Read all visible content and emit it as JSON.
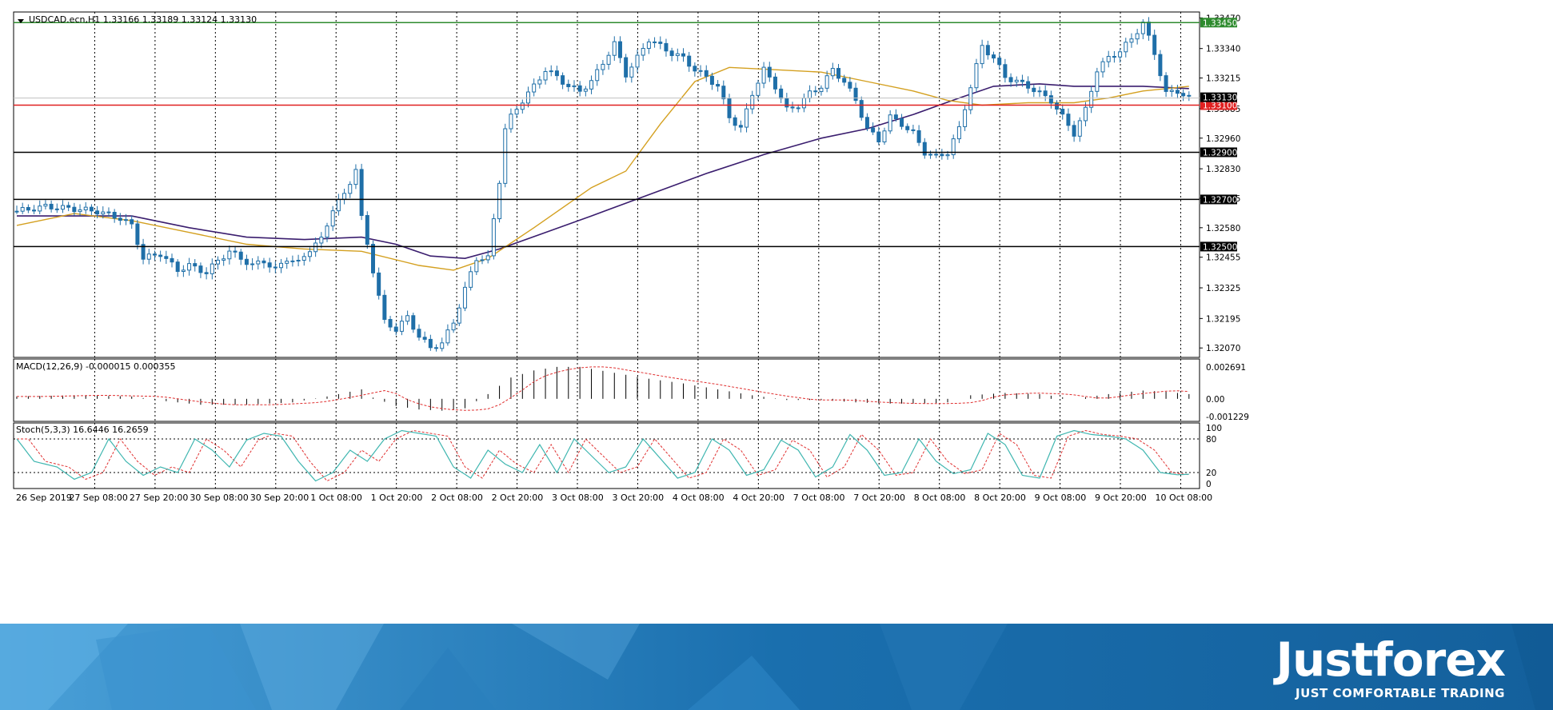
{
  "header": {
    "symbol_info": "USDCAD.ecn,H1  1.33166 1.33189 1.33124 1.33130",
    "macd_label": "MACD(12,26,9) -0.000015 0.000355",
    "stoch_label": "Stoch(5,3,3) 16.6446 16.2659"
  },
  "colors": {
    "candle": "#1f6fa8",
    "ma_fast": "#d4a020",
    "ma_slow": "#3a1d6e",
    "resistance_line": "#2e8b2e",
    "support_red": "#e02020",
    "level_black": "#000000",
    "macd_signal": "#e03030",
    "stoch_main": "#3fb6b0",
    "stoch_signal": "#e03030",
    "footer_bg": "#1a6fae"
  },
  "chart_data": {
    "type": "candlestick",
    "symbol": "USDCAD.ecn",
    "timeframe": "H1",
    "ohlc_current": {
      "open": 1.33166,
      "high": 1.33189,
      "low": 1.33124,
      "close": 1.3313
    },
    "price_axis": {
      "ticks": [
        "1.33470",
        "1.33340",
        "1.33215",
        "1.33085",
        "1.32960",
        "1.32830",
        "1.32705",
        "1.32580",
        "1.32455",
        "1.32325",
        "1.32195",
        "1.32070"
      ],
      "range": [
        1.3203,
        1.33495
      ]
    },
    "current_price_label": "1.33130",
    "horizontal_levels": [
      {
        "label": "1.33450",
        "value": 1.3345,
        "color": "#2e8b2e"
      },
      {
        "label": "1.33100",
        "value": 1.331,
        "color": "#e02020"
      },
      {
        "label": "1.32900",
        "value": 1.329,
        "color": "#000000"
      },
      {
        "label": "1.32700",
        "value": 1.327,
        "color": "#000000"
      },
      {
        "label": "1.32500",
        "value": 1.325,
        "color": "#000000"
      }
    ],
    "time_axis_labels": [
      "26 Sep 2019",
      "27 Sep 08:00",
      "27 Sep 20:00",
      "30 Sep 08:00",
      "30 Sep 20:00",
      "1 Oct 08:00",
      "1 Oct 20:00",
      "2 Oct 08:00",
      "2 Oct 20:00",
      "3 Oct 08:00",
      "3 Oct 20:00",
      "4 Oct 08:00",
      "4 Oct 20:00",
      "7 Oct 08:00",
      "7 Oct 20:00",
      "8 Oct 08:00",
      "8 Oct 20:00",
      "9 Oct 08:00",
      "9 Oct 20:00",
      "10 Oct 08:00"
    ],
    "close_path": [
      [
        0,
        1.3265
      ],
      [
        5,
        1.3267
      ],
      [
        10,
        1.3266
      ],
      [
        14,
        1.3265
      ],
      [
        18,
        1.3262
      ],
      [
        20,
        1.3259
      ],
      [
        22,
        1.3245
      ],
      [
        25,
        1.3247
      ],
      [
        28,
        1.324
      ],
      [
        30,
        1.3242
      ],
      [
        33,
        1.3239
      ],
      [
        35,
        1.3244
      ],
      [
        37,
        1.3248
      ],
      [
        39,
        1.3245
      ],
      [
        41,
        1.3242
      ],
      [
        43,
        1.3244
      ],
      [
        45,
        1.324
      ],
      [
        47,
        1.3245
      ],
      [
        49,
        1.3243
      ],
      [
        51,
        1.3249
      ],
      [
        53,
        1.3253
      ],
      [
        55,
        1.3266
      ],
      [
        57,
        1.3272
      ],
      [
        59,
        1.3283
      ],
      [
        60,
        1.3262
      ],
      [
        62,
        1.324
      ],
      [
        64,
        1.3218
      ],
      [
        66,
        1.3215
      ],
      [
        68,
        1.322
      ],
      [
        70,
        1.3212
      ],
      [
        72,
        1.3207
      ],
      [
        74,
        1.3209
      ],
      [
        76,
        1.3218
      ],
      [
        78,
        1.3232
      ],
      [
        80,
        1.3245
      ],
      [
        82,
        1.3245
      ],
      [
        84,
        1.3278
      ],
      [
        85,
        1.33
      ],
      [
        86,
        1.3305
      ],
      [
        88,
        1.3312
      ],
      [
        90,
        1.3318
      ],
      [
        92,
        1.3325
      ],
      [
        94,
        1.3322
      ],
      [
        96,
        1.3318
      ],
      [
        98,
        1.3316
      ],
      [
        100,
        1.332
      ],
      [
        102,
        1.3328
      ],
      [
        104,
        1.3336
      ],
      [
        106,
        1.3323
      ],
      [
        108,
        1.333
      ],
      [
        110,
        1.3338
      ],
      [
        112,
        1.3335
      ],
      [
        114,
        1.3332
      ],
      [
        116,
        1.333
      ],
      [
        118,
        1.3325
      ],
      [
        120,
        1.3322
      ],
      [
        122,
        1.3318
      ],
      [
        124,
        1.3305
      ],
      [
        126,
        1.33
      ],
      [
        128,
        1.3315
      ],
      [
        130,
        1.3325
      ],
      [
        132,
        1.3318
      ],
      [
        134,
        1.3308
      ],
      [
        136,
        1.331
      ],
      [
        138,
        1.3315
      ],
      [
        140,
        1.3318
      ],
      [
        142,
        1.3325
      ],
      [
        144,
        1.332
      ],
      [
        146,
        1.3312
      ],
      [
        148,
        1.33
      ],
      [
        150,
        1.3295
      ],
      [
        152,
        1.3305
      ],
      [
        154,
        1.3302
      ],
      [
        156,
        1.3298
      ],
      [
        158,
        1.329
      ],
      [
        160,
        1.3288
      ],
      [
        162,
        1.329
      ],
      [
        164,
        1.33
      ],
      [
        166,
        1.3318
      ],
      [
        168,
        1.3335
      ],
      [
        170,
        1.333
      ],
      [
        172,
        1.3322
      ],
      [
        174,
        1.332
      ],
      [
        176,
        1.3318
      ],
      [
        178,
        1.3315
      ],
      [
        180,
        1.3312
      ],
      [
        182,
        1.3305
      ],
      [
        184,
        1.3298
      ],
      [
        186,
        1.3308
      ],
      [
        188,
        1.3325
      ],
      [
        190,
        1.333
      ],
      [
        192,
        1.3333
      ],
      [
        194,
        1.3338
      ],
      [
        196,
        1.3345
      ],
      [
        198,
        1.3332
      ],
      [
        200,
        1.3315
      ],
      [
        202,
        1.3316
      ],
      [
        204,
        1.3313
      ]
    ],
    "ma_fast_path": [
      [
        0,
        1.3259
      ],
      [
        10,
        1.3264
      ],
      [
        20,
        1.3261
      ],
      [
        30,
        1.3256
      ],
      [
        40,
        1.3251
      ],
      [
        50,
        1.3249
      ],
      [
        60,
        1.3248
      ],
      [
        70,
        1.3242
      ],
      [
        76,
        1.324
      ],
      [
        82,
        1.3245
      ],
      [
        90,
        1.3258
      ],
      [
        100,
        1.3275
      ],
      [
        106,
        1.3282
      ],
      [
        112,
        1.3302
      ],
      [
        118,
        1.332
      ],
      [
        124,
        1.3326
      ],
      [
        132,
        1.3325
      ],
      [
        140,
        1.3324
      ],
      [
        148,
        1.332
      ],
      [
        156,
        1.3316
      ],
      [
        162,
        1.3312
      ],
      [
        168,
        1.331
      ],
      [
        176,
        1.3311
      ],
      [
        184,
        1.3311
      ],
      [
        190,
        1.3313
      ],
      [
        196,
        1.3316
      ],
      [
        204,
        1.3318
      ]
    ],
    "ma_slow_path": [
      [
        0,
        1.3263
      ],
      [
        20,
        1.3263
      ],
      [
        30,
        1.3258
      ],
      [
        40,
        1.3254
      ],
      [
        50,
        1.3253
      ],
      [
        60,
        1.3254
      ],
      [
        66,
        1.3251
      ],
      [
        72,
        1.3246
      ],
      [
        78,
        1.3245
      ],
      [
        84,
        1.3249
      ],
      [
        92,
        1.3256
      ],
      [
        100,
        1.3263
      ],
      [
        110,
        1.3272
      ],
      [
        120,
        1.3281
      ],
      [
        130,
        1.3289
      ],
      [
        140,
        1.3296
      ],
      [
        148,
        1.33
      ],
      [
        156,
        1.3306
      ],
      [
        164,
        1.3313
      ],
      [
        170,
        1.3318
      ],
      [
        178,
        1.3319
      ],
      [
        184,
        1.3318
      ],
      [
        190,
        1.3318
      ],
      [
        196,
        1.3318
      ],
      [
        204,
        1.3317
      ]
    ],
    "macd": {
      "params": "12,26,9",
      "value": -1.5e-05,
      "signal": 0.000355,
      "axis_ticks": [
        "0.002691",
        "0.00",
        "-0.001229"
      ],
      "histogram": [
        [
          0,
          0.0002
        ],
        [
          10,
          0.0003
        ],
        [
          20,
          0.0002
        ],
        [
          26,
          -0.0002
        ],
        [
          32,
          -0.0005
        ],
        [
          40,
          -0.0005
        ],
        [
          48,
          -0.0003
        ],
        [
          54,
          0.0002
        ],
        [
          58,
          0.0006
        ],
        [
          60,
          0.0008
        ],
        [
          62,
          0.0001
        ],
        [
          66,
          -0.0006
        ],
        [
          70,
          -0.0009
        ],
        [
          74,
          -0.001
        ],
        [
          78,
          -0.0008
        ],
        [
          82,
          0.0004
        ],
        [
          86,
          0.0018
        ],
        [
          90,
          0.0024
        ],
        [
          94,
          0.0027
        ],
        [
          98,
          0.0027
        ],
        [
          104,
          0.0022
        ],
        [
          110,
          0.0017
        ],
        [
          116,
          0.0013
        ],
        [
          122,
          0.0008
        ],
        [
          128,
          0.0003
        ],
        [
          134,
          -0.0001
        ],
        [
          140,
          -0.0001
        ],
        [
          146,
          -0.0003
        ],
        [
          152,
          -0.0004
        ],
        [
          158,
          -0.0004
        ],
        [
          162,
          -0.0003
        ],
        [
          166,
          0.0003
        ],
        [
          172,
          0.0005
        ],
        [
          178,
          0.0004
        ],
        [
          184,
          0.0
        ],
        [
          190,
          0.0004
        ],
        [
          196,
          0.0007
        ],
        [
          200,
          0.0006
        ],
        [
          204,
          0.0004
        ]
      ]
    },
    "stochastic": {
      "params": "5,3,3",
      "main": 16.6446,
      "signal": 16.2659,
      "axis_ticks": [
        "100",
        "80",
        "20",
        "0"
      ],
      "main_path": [
        [
          0,
          80
        ],
        [
          3,
          40
        ],
        [
          7,
          30
        ],
        [
          10,
          8
        ],
        [
          13,
          20
        ],
        [
          16,
          80
        ],
        [
          19,
          40
        ],
        [
          22,
          15
        ],
        [
          25,
          30
        ],
        [
          28,
          20
        ],
        [
          31,
          80
        ],
        [
          34,
          60
        ],
        [
          37,
          30
        ],
        [
          40,
          78
        ],
        [
          43,
          90
        ],
        [
          46,
          85
        ],
        [
          49,
          40
        ],
        [
          52,
          5
        ],
        [
          55,
          20
        ],
        [
          58,
          60
        ],
        [
          61,
          40
        ],
        [
          64,
          80
        ],
        [
          67,
          95
        ],
        [
          70,
          90
        ],
        [
          73,
          85
        ],
        [
          76,
          30
        ],
        [
          79,
          10
        ],
        [
          82,
          60
        ],
        [
          85,
          35
        ],
        [
          88,
          20
        ],
        [
          91,
          70
        ],
        [
          94,
          20
        ],
        [
          97,
          80
        ],
        [
          100,
          50
        ],
        [
          103,
          20
        ],
        [
          106,
          30
        ],
        [
          109,
          80
        ],
        [
          112,
          45
        ],
        [
          115,
          10
        ],
        [
          118,
          20
        ],
        [
          121,
          80
        ],
        [
          124,
          60
        ],
        [
          127,
          15
        ],
        [
          130,
          25
        ],
        [
          133,
          78
        ],
        [
          136,
          60
        ],
        [
          139,
          12
        ],
        [
          142,
          30
        ],
        [
          145,
          88
        ],
        [
          148,
          60
        ],
        [
          151,
          15
        ],
        [
          154,
          20
        ],
        [
          157,
          80
        ],
        [
          160,
          40
        ],
        [
          163,
          18
        ],
        [
          166,
          25
        ],
        [
          169,
          90
        ],
        [
          172,
          70
        ],
        [
          175,
          15
        ],
        [
          178,
          10
        ],
        [
          181,
          85
        ],
        [
          184,
          95
        ],
        [
          187,
          88
        ],
        [
          190,
          85
        ],
        [
          193,
          80
        ],
        [
          196,
          60
        ],
        [
          199,
          20
        ],
        [
          202,
          16
        ],
        [
          204,
          17
        ]
      ]
    }
  },
  "footer": {
    "brand": "Justforex",
    "tagline": "JUST COMFORTABLE TRADING"
  }
}
